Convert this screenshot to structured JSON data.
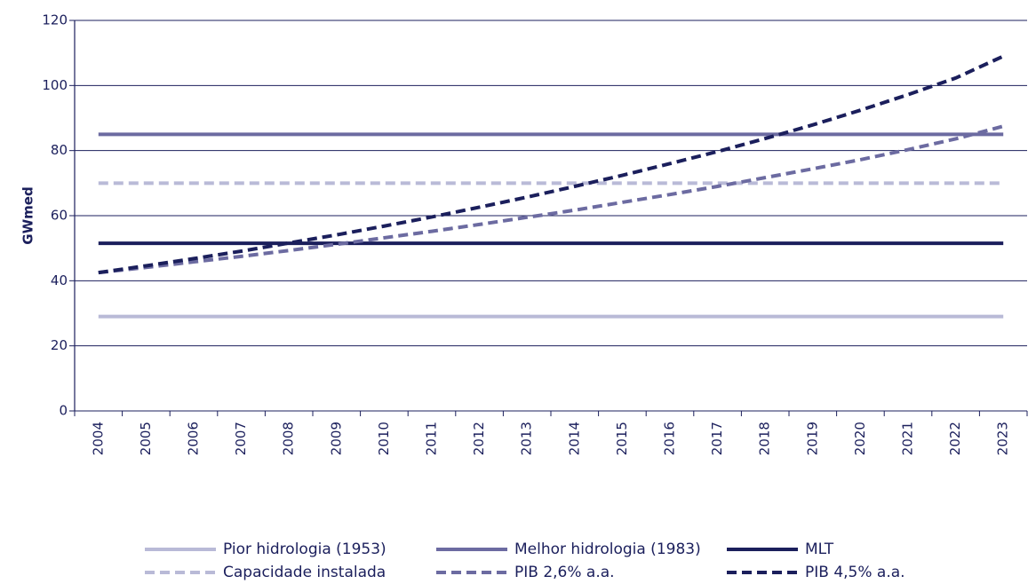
{
  "chart_data": {
    "type": "line",
    "y_label": "GWmed",
    "categories": [
      "2004",
      "2005",
      "2006",
      "2007",
      "2008",
      "2009",
      "2010",
      "2011",
      "2012",
      "2013",
      "2014",
      "2015",
      "2016",
      "2017",
      "2018",
      "2019",
      "2020",
      "2021",
      "2022",
      "2023"
    ],
    "ylim": [
      0,
      120
    ],
    "yticks": [
      0,
      20,
      40,
      60,
      80,
      100,
      120
    ],
    "grid": true,
    "series": [
      {
        "name": "Pior hidrologia (1953)",
        "color": "#b9bad7",
        "dashed": false,
        "values": [
          29,
          29,
          29,
          29,
          29,
          29,
          29,
          29,
          29,
          29,
          29,
          29,
          29,
          29,
          29,
          29,
          29,
          29,
          29,
          29
        ]
      },
      {
        "name": "Melhor hidrologia (1983)",
        "color": "#6c6ba1",
        "dashed": false,
        "values": [
          85,
          85,
          85,
          85,
          85,
          85,
          85,
          85,
          85,
          85,
          85,
          85,
          85,
          85,
          85,
          85,
          85,
          85,
          85,
          85
        ]
      },
      {
        "name": "MLT",
        "color": "#1b1f5c",
        "dashed": false,
        "values": [
          51.5,
          51.5,
          51.5,
          51.5,
          51.5,
          51.5,
          51.5,
          51.5,
          51.5,
          51.5,
          51.5,
          51.5,
          51.5,
          51.5,
          51.5,
          51.5,
          51.5,
          51.5,
          51.5,
          51.5
        ]
      },
      {
        "name": "Capacidade instalada",
        "color": "#b9bad7",
        "dashed": true,
        "values": [
          70,
          70,
          70,
          70,
          70,
          70,
          70,
          70,
          70,
          70,
          70,
          70,
          70,
          70,
          70,
          70,
          70,
          70,
          70,
          70
        ]
      },
      {
        "name": "PIB 2,6% a.a.",
        "color": "#6c6ba1",
        "dashed": true,
        "values": [
          42.5,
          44.1,
          45.8,
          47.5,
          49.3,
          51.2,
          53.2,
          55.2,
          57.3,
          59.5,
          61.7,
          64.1,
          66.5,
          69.0,
          71.7,
          74.4,
          77.2,
          80.3,
          83.6,
          87.5
        ]
      },
      {
        "name": "PIB 4,5% a.a.",
        "color": "#1b1f5c",
        "dashed": true,
        "values": [
          42.5,
          44.6,
          46.8,
          49.1,
          51.6,
          54.1,
          56.8,
          59.6,
          62.6,
          65.7,
          69.0,
          72.4,
          76.0,
          79.7,
          83.7,
          87.9,
          92.4,
          97.2,
          102.3,
          109
        ]
      }
    ]
  }
}
